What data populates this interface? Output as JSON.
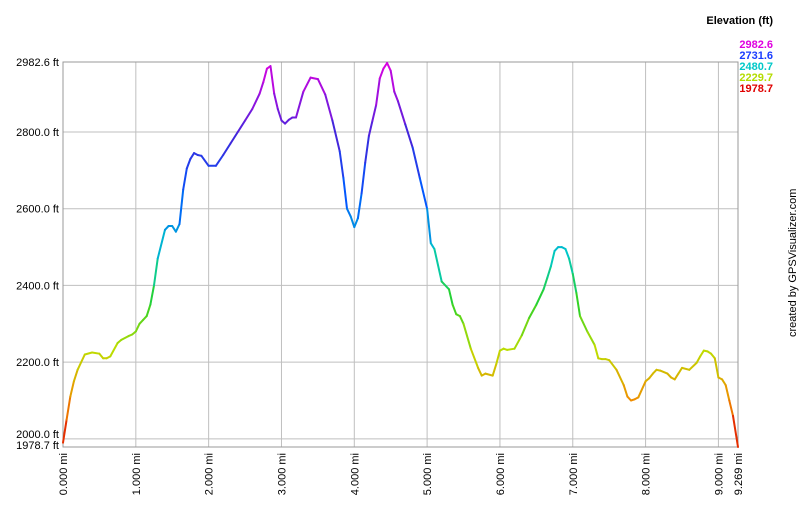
{
  "chart_data": {
    "type": "line",
    "title": "",
    "xlabel": "",
    "ylabel": "",
    "x_unit": "mi",
    "y_unit": "ft",
    "xlim": [
      0,
      9.269
    ],
    "ylim": [
      1978.7,
      2982.6
    ],
    "grid": true,
    "x_ticks": [
      0,
      1,
      2,
      3,
      4,
      5,
      6,
      7,
      8,
      9,
      9.269
    ],
    "x_tick_labels": [
      "0.000 mi",
      "1.000 mi",
      "2.000 mi",
      "3.000 mi",
      "4.000 mi",
      "5.000 mi",
      "6.000 mi",
      "7.000 mi",
      "8.000 mi",
      "9.000 mi",
      "9.269 mi"
    ],
    "y_ticks": [
      1978.7,
      2000,
      2200,
      2400,
      2600,
      2800,
      2982.6
    ],
    "y_tick_labels": [
      "1978.7 ft",
      "2000.0 ft",
      "2200.0 ft",
      "2400.0 ft",
      "2600.0 ft",
      "2800.0 ft",
      "2982.6 ft"
    ],
    "legend": {
      "title": "Elevation (ft)",
      "placement": "top-right",
      "entries": [
        {
          "label": "2982.6",
          "color": "#e000e0"
        },
        {
          "label": "2731.6",
          "color": "#1a3cff"
        },
        {
          "label": "2480.7",
          "color": "#00c8c8"
        },
        {
          "label": "2229.7",
          "color": "#b4dc00"
        },
        {
          "label": "1978.7",
          "color": "#e00000"
        }
      ]
    },
    "credit": "created by GPSVisualizer.com",
    "series": [
      {
        "x": [
          0,
          0.05,
          0.1,
          0.15,
          0.2,
          0.3,
          0.4,
          0.5,
          0.55,
          0.6,
          0.65,
          0.75,
          0.8,
          0.9,
          0.95,
          1.0,
          1.05,
          1.1,
          1.15,
          1.2,
          1.25,
          1.3,
          1.4,
          1.45,
          1.5,
          1.55,
          1.6,
          1.65,
          1.7,
          1.75,
          1.8,
          1.85,
          1.9,
          2.0,
          2.1,
          2.2,
          2.3,
          2.4,
          2.5,
          2.6,
          2.7,
          2.75,
          2.8,
          2.85,
          2.9,
          2.95,
          3.0,
          3.05,
          3.1,
          3.15,
          3.2,
          3.3,
          3.4,
          3.5,
          3.6,
          3.7,
          3.8,
          3.85,
          3.9,
          3.95,
          4.0,
          4.05,
          4.1,
          4.15,
          4.2,
          4.25,
          4.3,
          4.35,
          4.4,
          4.45,
          4.5,
          4.55,
          4.6,
          4.7,
          4.8,
          4.9,
          5.0,
          5.05,
          5.1,
          5.2,
          5.3,
          5.35,
          5.4,
          5.45,
          5.5,
          5.6,
          5.7,
          5.75,
          5.8,
          5.9,
          5.95,
          6.0,
          6.05,
          6.1,
          6.2,
          6.3,
          6.4,
          6.5,
          6.6,
          6.65,
          6.7,
          6.75,
          6.8,
          6.85,
          6.9,
          6.95,
          7.0,
          7.05,
          7.1,
          7.2,
          7.3,
          7.35,
          7.4,
          7.45,
          7.5,
          7.6,
          7.7,
          7.75,
          7.8,
          7.85,
          7.9,
          8.0,
          8.05,
          8.1,
          8.15,
          8.2,
          8.3,
          8.35,
          8.4,
          8.45,
          8.5,
          8.6,
          8.7,
          8.75,
          8.8,
          8.85,
          8.9,
          8.95,
          9.0,
          9.05,
          9.1,
          9.15,
          9.2,
          9.269
        ],
        "y": [
          1990,
          2050,
          2110,
          2150,
          2180,
          2220,
          2225,
          2222,
          2210,
          2210,
          2215,
          2250,
          2258,
          2268,
          2272,
          2280,
          2300,
          2310,
          2320,
          2350,
          2400,
          2470,
          2545,
          2555,
          2555,
          2540,
          2560,
          2650,
          2705,
          2730,
          2745,
          2740,
          2738,
          2712,
          2712,
          2740,
          2770,
          2800,
          2830,
          2860,
          2900,
          2930,
          2965,
          2972,
          2900,
          2860,
          2830,
          2822,
          2832,
          2838,
          2838,
          2905,
          2942,
          2938,
          2898,
          2830,
          2750,
          2680,
          2600,
          2580,
          2552,
          2575,
          2640,
          2720,
          2790,
          2830,
          2870,
          2940,
          2965,
          2980,
          2960,
          2905,
          2880,
          2820,
          2760,
          2680,
          2600,
          2510,
          2495,
          2410,
          2390,
          2350,
          2325,
          2320,
          2300,
          2235,
          2185,
          2165,
          2170,
          2165,
          2195,
          2230,
          2235,
          2232,
          2235,
          2270,
          2315,
          2350,
          2390,
          2420,
          2450,
          2490,
          2500,
          2500,
          2495,
          2470,
          2430,
          2380,
          2320,
          2280,
          2245,
          2210,
          2208,
          2208,
          2205,
          2180,
          2140,
          2110,
          2100,
          2103,
          2108,
          2150,
          2158,
          2170,
          2180,
          2178,
          2170,
          2160,
          2155,
          2170,
          2185,
          2180,
          2198,
          2215,
          2230,
          2228,
          2222,
          2210,
          2160,
          2155,
          2140,
          2100,
          2060,
          1978.7
        ]
      }
    ]
  }
}
